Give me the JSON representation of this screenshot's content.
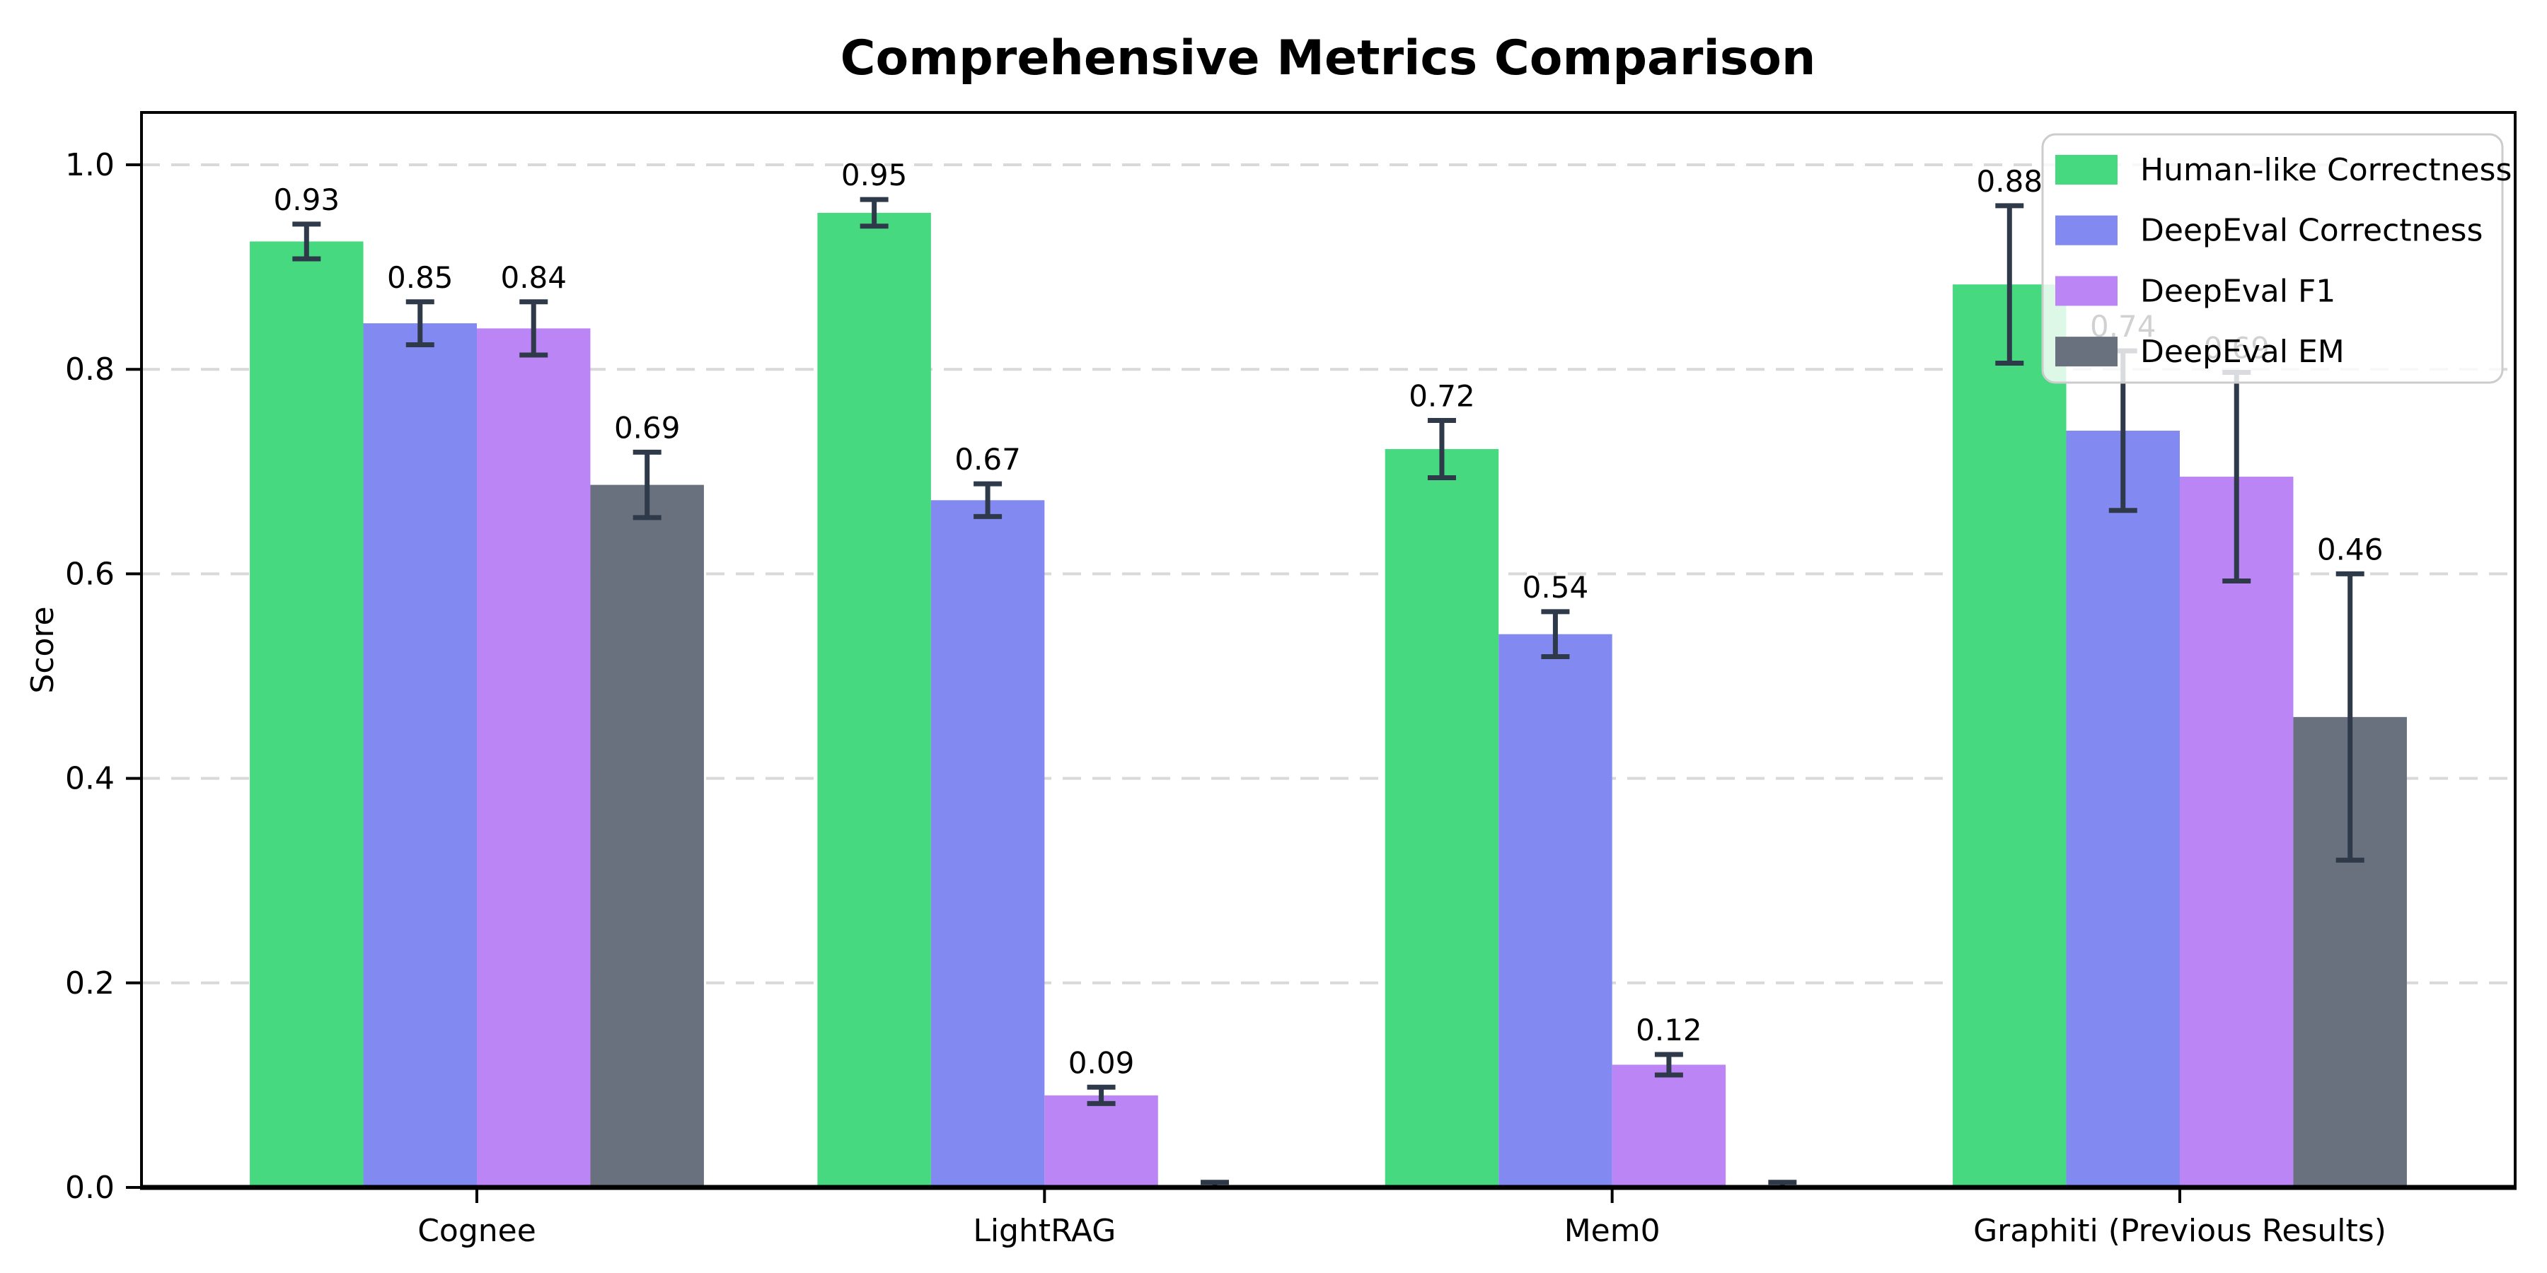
{
  "chart_data": {
    "type": "bar",
    "title": "Comprehensive Metrics Comparison",
    "xlabel": "",
    "ylabel": "Score",
    "ylim": [
      0,
      1.05
    ],
    "ytick_labels": [
      "0.0",
      "0.2",
      "0.4",
      "0.6",
      "0.8",
      "1.0"
    ],
    "ytick_values": [
      0.0,
      0.2,
      0.4,
      0.6,
      0.8,
      1.0
    ],
    "grid": "horizontal dashed lines at 0.2 intervals",
    "legend_position": "upper right",
    "categories": [
      "Cognee",
      "LightRAG",
      "Mem0",
      "Graphiti (Previous Results)"
    ],
    "series": [
      {
        "name": "Human-like Correctness",
        "color": "#47d97f",
        "values": [
          0.925,
          0.953,
          0.722,
          0.883
        ],
        "errors": [
          0.017,
          0.013,
          0.028,
          0.077
        ],
        "labels": [
          "0.93",
          "0.95",
          "0.72",
          "0.88"
        ]
      },
      {
        "name": "DeepEval Correctness",
        "color": "#8289f1",
        "values": [
          0.845,
          0.672,
          0.541,
          0.74
        ],
        "errors": [
          0.021,
          0.016,
          0.022,
          0.078
        ],
        "labels": [
          "0.85",
          "0.67",
          "0.54",
          "0.74"
        ]
      },
      {
        "name": "DeepEval F1",
        "color": "#bc85f5",
        "values": [
          0.84,
          0.09,
          0.12,
          0.695
        ],
        "errors": [
          0.026,
          0.008,
          0.01,
          0.102
        ],
        "labels": [
          "0.84",
          "0.09",
          "0.12",
          "0.69"
        ]
      },
      {
        "name": "DeepEval EM",
        "color": "#69707e",
        "values": [
          0.687,
          0.0,
          0.0,
          0.46
        ],
        "errors": [
          0.032,
          0.005,
          0.005,
          0.14
        ],
        "labels": [
          "0.69",
          "",
          "",
          "0.46"
        ]
      }
    ],
    "colors": {
      "error_bar": "#2e3a49",
      "grid": "#d9d9d9",
      "axis": "#000000",
      "background": "#ffffff",
      "legend_border": "#cccccc",
      "label_text": "#000000"
    }
  }
}
